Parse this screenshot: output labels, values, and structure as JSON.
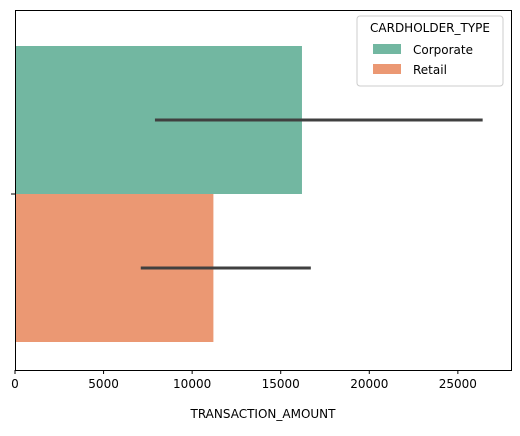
{
  "chart_data": {
    "type": "bar",
    "orientation": "horizontal",
    "categories": [
      ""
    ],
    "series": [
      {
        "name": "Corporate",
        "values": [
          16200
        ],
        "error_low": [
          7900
        ],
        "error_high": [
          26400
        ],
        "color": "#72b7a1"
      },
      {
        "name": "Retail",
        "values": [
          11200
        ],
        "error_low": [
          7100
        ],
        "error_high": [
          16700
        ],
        "color": "#eb9873"
      }
    ],
    "xlabel": "TRANSACTION_AMOUNT",
    "ylabel": "",
    "xlim": [
      0,
      28000
    ],
    "xticks": [
      0,
      5000,
      10000,
      15000,
      20000,
      25000
    ],
    "xtick_labels": [
      "0",
      "5000",
      "10000",
      "15000",
      "20000",
      "25000"
    ],
    "error_bar_color": "#404040",
    "grid": false,
    "legend": {
      "title": "CARDHOLDER_TYPE",
      "placement": "top-right"
    }
  }
}
